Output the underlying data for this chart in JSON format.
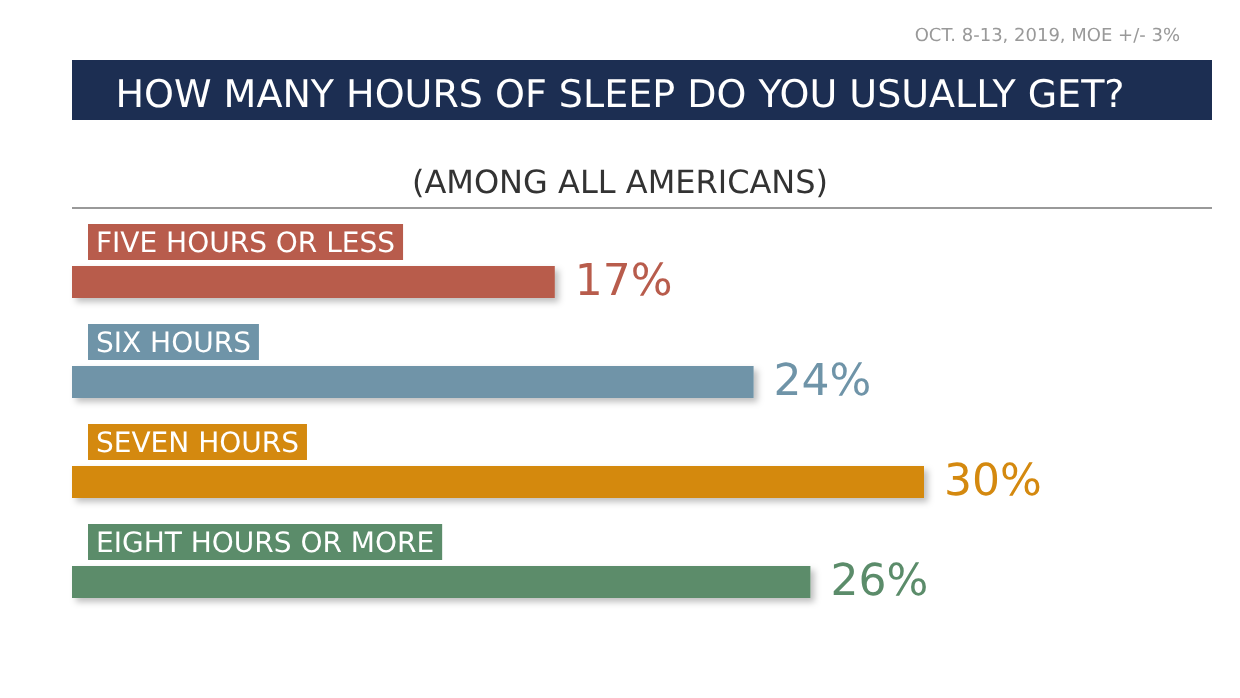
{
  "chart_data": {
    "type": "bar",
    "orientation": "horizontal",
    "title": "HOW MANY HOURS OF SLEEP DO YOU USUALLY GET?",
    "subtitle": "(AMONG ALL AMERICANS)",
    "annotations": [
      "OCT. 8-13, 2019, MOE +/- 3%"
    ],
    "categories": [
      "FIVE HOURS OR LESS",
      "SIX HOURS",
      "SEVEN HOURS",
      "EIGHT HOURS OR MORE"
    ],
    "values": [
      17,
      24,
      30,
      26
    ],
    "colors": [
      "#b85c4c",
      "#6f94a8",
      "#d4890f",
      "#5b8c6a"
    ],
    "value_labels": [
      "17%",
      "24%",
      "30%",
      "26%"
    ]
  }
}
